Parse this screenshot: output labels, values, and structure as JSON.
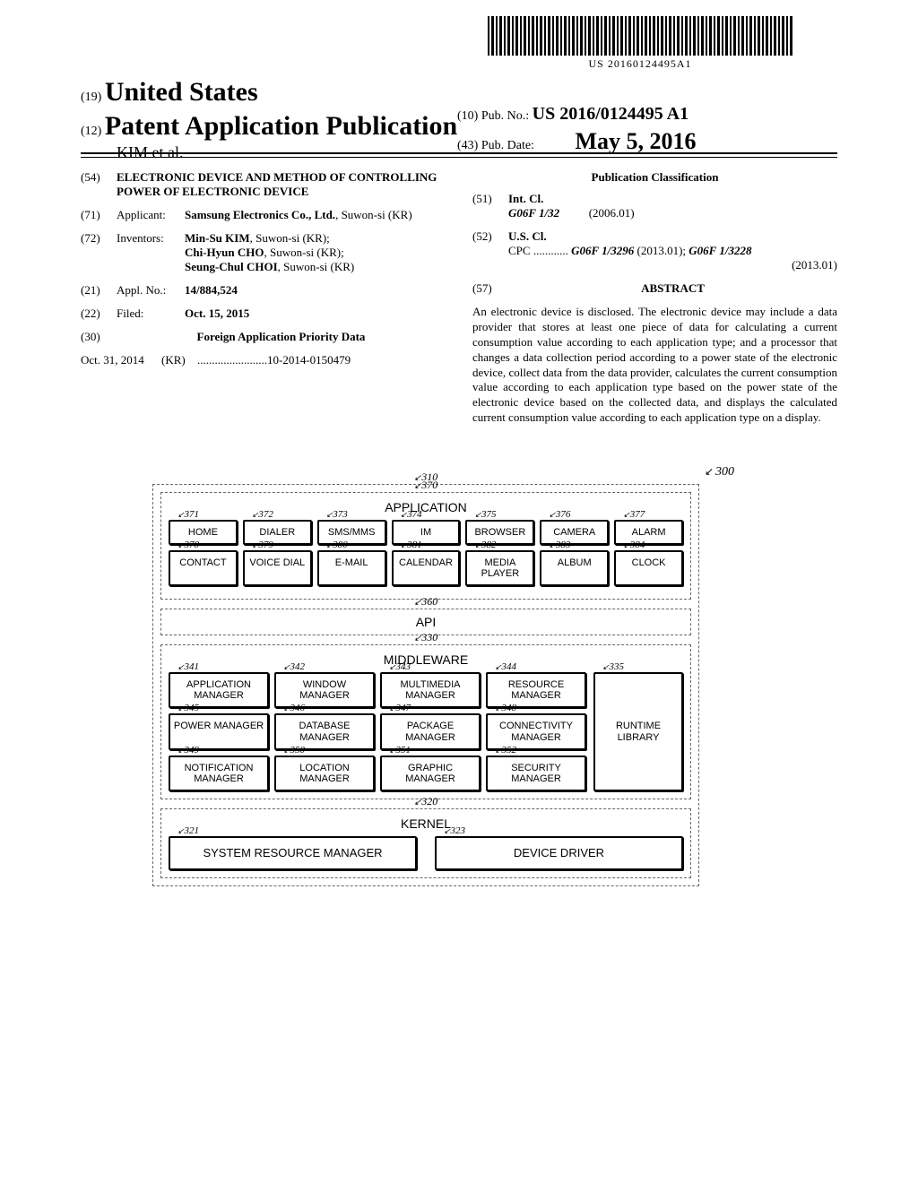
{
  "barcode": {
    "text": "US 20160124495A1"
  },
  "header": {
    "code19": "(19)",
    "country": "United States",
    "code12": "(12)",
    "doctype": "Patent Application Publication",
    "authors": "KIM et al.",
    "code10": "(10)",
    "pubno_label": "Pub. No.:",
    "pubno": "US 2016/0124495 A1",
    "code43": "(43)",
    "pubdate_label": "Pub. Date:",
    "pubdate": "May 5, 2016"
  },
  "left": {
    "c54": "(54)",
    "title": "ELECTRONIC DEVICE AND METHOD OF CONTROLLING POWER OF ELECTRONIC DEVICE",
    "c71": "(71)",
    "l71": "Applicant:",
    "applicant": "Samsung Electronics Co., Ltd.",
    "applicant_loc": "Suwon-si (KR)",
    "c72": "(72)",
    "l72": "Inventors:",
    "inv1": "Min-Su KIM",
    "inv1loc": "Suwon-si (KR);",
    "inv2": "Chi-Hyun CHO",
    "inv2loc": "Suwon-si (KR);",
    "inv3": "Seung-Chul CHOI",
    "inv3loc": "Suwon-si (KR)",
    "c21": "(21)",
    "l21": "Appl. No.:",
    "appno": "14/884,524",
    "c22": "(22)",
    "l22": "Filed:",
    "filed": "Oct. 15, 2015",
    "c30": "(30)",
    "l30": "Foreign Application Priority Data",
    "prio_date": "Oct. 31, 2014",
    "prio_cc": "(KR)",
    "prio_dots": "........................",
    "prio_no": "10-2014-0150479"
  },
  "right": {
    "class_head": "Publication Classification",
    "c51": "(51)",
    "l51": "Int. Cl.",
    "intcl": "G06F 1/32",
    "intcl_ver": "(2006.01)",
    "c52": "(52)",
    "l52": "U.S. Cl.",
    "cpc_label": "CPC ............",
    "cpc1": "G06F 1/3296",
    "cpc1v": "(2013.01);",
    "cpc2": "G06F 1/3228",
    "cpc2v": "(2013.01)",
    "c57": "(57)",
    "l57": "ABSTRACT",
    "abstract": "An electronic device is disclosed. The electronic device may include a data provider that stores at least one piece of data for calculating a current consumption value according to each application type; and a processor that changes a data collection period according to a power state of the electronic device, collect data from the data provider, calculates the current consumption value according to each application type based on the power state of the electronic device based on the collected data, and displays the calculated current consumption value according to each application type on a display."
  },
  "diagram": {
    "ref300": "300",
    "ref310": "310",
    "layers": {
      "app": {
        "ref": "370",
        "title": "APPLICATION",
        "row1": [
          {
            "ref": "371",
            "t": "HOME"
          },
          {
            "ref": "372",
            "t": "DIALER"
          },
          {
            "ref": "373",
            "t": "SMS/MMS"
          },
          {
            "ref": "374",
            "t": "IM"
          },
          {
            "ref": "375",
            "t": "BROWSER"
          },
          {
            "ref": "376",
            "t": "CAMERA"
          },
          {
            "ref": "377",
            "t": "ALARM"
          }
        ],
        "row2": [
          {
            "ref": "378",
            "t": "CONTACT"
          },
          {
            "ref": "379",
            "t": "VOICE DIAL"
          },
          {
            "ref": "380",
            "t": "E-MAIL"
          },
          {
            "ref": "381",
            "t": "CALENDAR"
          },
          {
            "ref": "382",
            "t": "MEDIA PLAYER"
          },
          {
            "ref": "383",
            "t": "ALBUM"
          },
          {
            "ref": "384",
            "t": "CLOCK"
          }
        ]
      },
      "api": {
        "ref": "360",
        "title": "API"
      },
      "mw": {
        "ref": "330",
        "title": "MIDDLEWARE",
        "r1": [
          {
            "ref": "341",
            "t": "APPLICATION MANAGER"
          },
          {
            "ref": "342",
            "t": "WINDOW MANAGER"
          },
          {
            "ref": "343",
            "t": "MULTIMEDIA MANAGER"
          },
          {
            "ref": "344",
            "t": "RESOURCE MANAGER"
          }
        ],
        "r2": [
          {
            "ref": "345",
            "t": "POWER MANAGER"
          },
          {
            "ref": "346",
            "t": "DATABASE MANAGER"
          },
          {
            "ref": "347",
            "t": "PACKAGE MANAGER"
          },
          {
            "ref": "348",
            "t": "CONNECTIVITY MANAGER"
          }
        ],
        "r3": [
          {
            "ref": "349",
            "t": "NOTIFICATION MANAGER"
          },
          {
            "ref": "350",
            "t": "LOCATION MANAGER"
          },
          {
            "ref": "351",
            "t": "GRAPHIC MANAGER"
          },
          {
            "ref": "352",
            "t": "SECURITY MANAGER"
          }
        ],
        "runtime": {
          "ref": "335",
          "t": "RUNTIME LIBRARY"
        }
      },
      "kernel": {
        "ref": "320",
        "title": "KERNEL",
        "left": {
          "ref": "321",
          "t": "SYSTEM RESOURCE MANAGER"
        },
        "right": {
          "ref": "323",
          "t": "DEVICE DRIVER"
        }
      }
    }
  }
}
